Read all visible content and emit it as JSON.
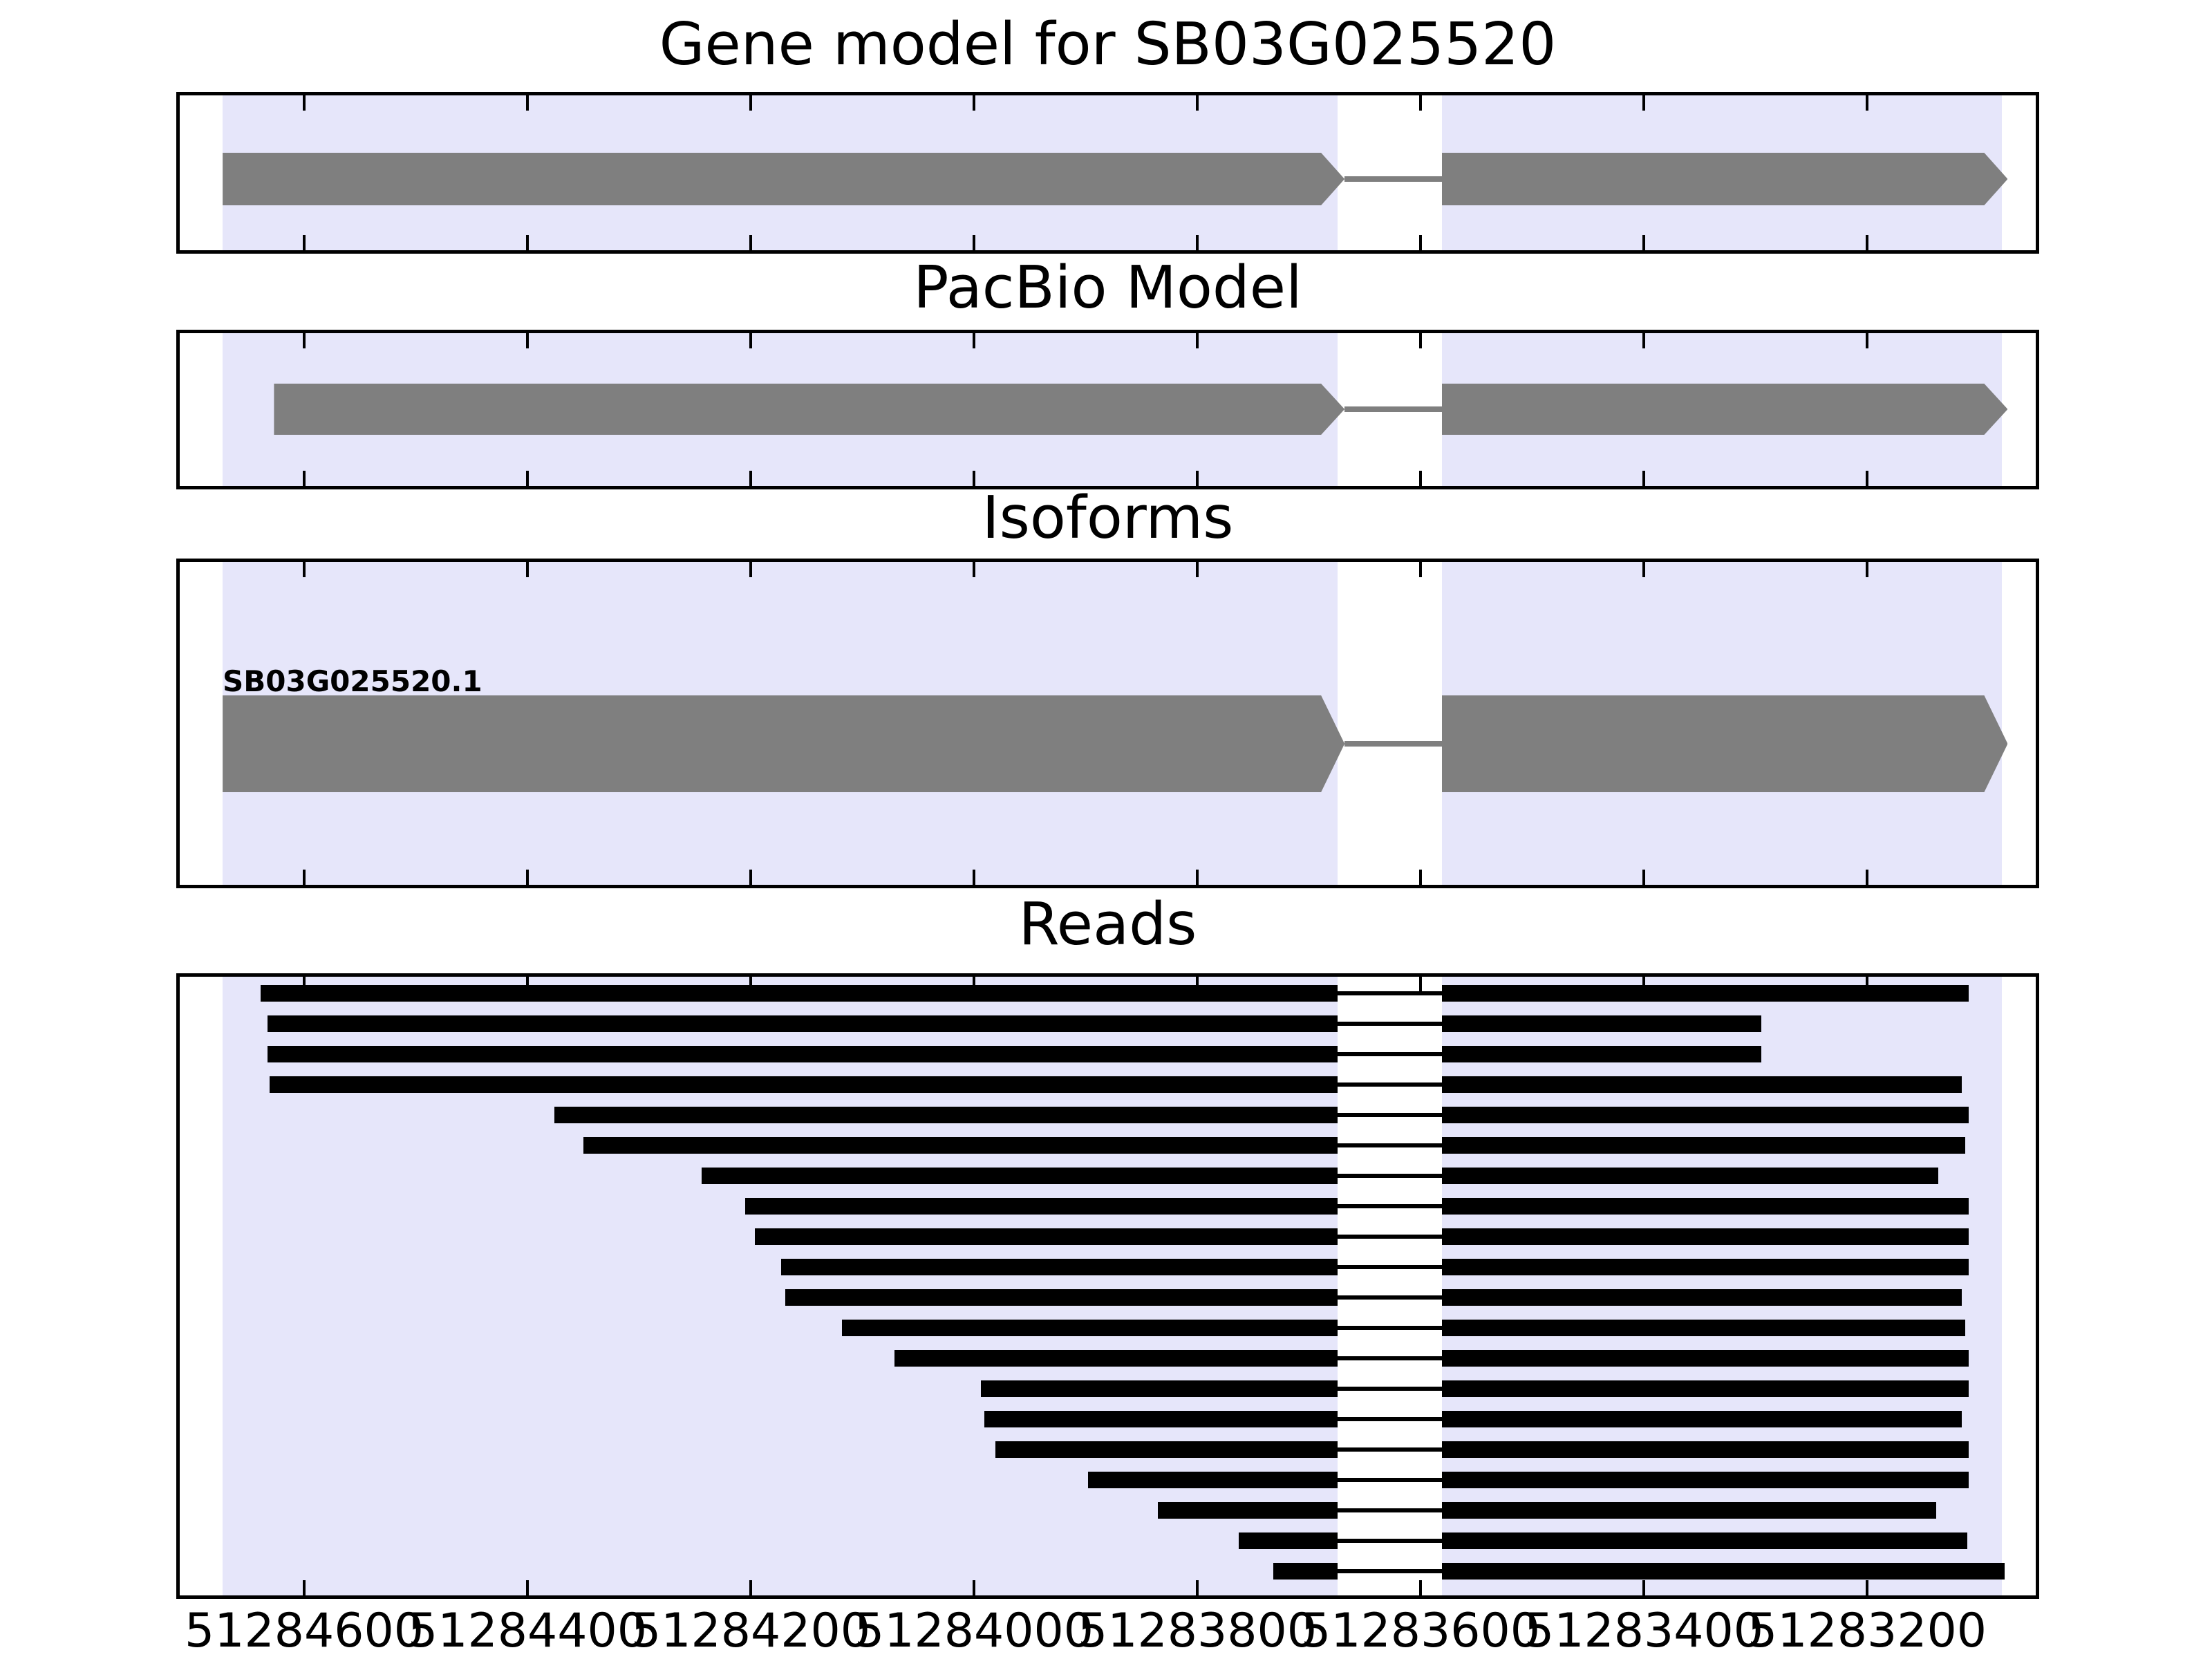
{
  "chart_data": {
    "type": "gene-tracks",
    "title": "Gene model for SB03G025520",
    "gene_id": "SB03G025520",
    "x_axis": {
      "tick_labels": [
        "51284600",
        "51284400",
        "51284200",
        "51284000",
        "51283800",
        "51283600",
        "51283400",
        "51283200"
      ],
      "tick_values": [
        51284600,
        51284400,
        51284200,
        51284000,
        51283800,
        51283600,
        51283400,
        51283200
      ],
      "direction": "decreasing",
      "grid": false
    },
    "highlight_regions": [
      {
        "start": 51284673,
        "end": 51283674
      },
      {
        "start": 51283581,
        "end": 51283079
      }
    ],
    "intron": {
      "start": 51283674,
      "end": 51283581
    },
    "tracks": [
      {
        "name": "gene_model",
        "title": "Gene model for SB03G025520",
        "features": [
          {
            "label": "",
            "strand": "right",
            "exons": [
              [
                51284673,
                51283668
              ],
              [
                51283581,
                51283074
              ]
            ]
          }
        ]
      },
      {
        "name": "pacbio_model",
        "title": "PacBio Model",
        "features": [
          {
            "label": "",
            "strand": "right",
            "exons": [
              [
                51284627,
                51283668
              ],
              [
                51283581,
                51283074
              ]
            ]
          }
        ]
      },
      {
        "name": "isoforms",
        "title": "Isoforms",
        "features": [
          {
            "label": "SB03G025520.1",
            "strand": "right",
            "exons": [
              [
                51284673,
                51283668
              ],
              [
                51283581,
                51283074
              ]
            ]
          }
        ]
      },
      {
        "name": "reads",
        "title": "Reads",
        "reads": [
          [
            51284639,
            51283109
          ],
          [
            51284633,
            51283295
          ],
          [
            51284633,
            51283295
          ],
          [
            51284631,
            51283115
          ],
          [
            51284376,
            51283109
          ],
          [
            51284350,
            51283112
          ],
          [
            51284244,
            51283136
          ],
          [
            51284205,
            51283109
          ],
          [
            51284196,
            51283109
          ],
          [
            51284173,
            51283109
          ],
          [
            51284169,
            51283115
          ],
          [
            51284118,
            51283112
          ],
          [
            51284071,
            51283109
          ],
          [
            51283994,
            51283109
          ],
          [
            51283991,
            51283115
          ],
          [
            51283981,
            51283109
          ],
          [
            51283898,
            51283109
          ],
          [
            51283835,
            51283138
          ],
          [
            51283763,
            51283110
          ],
          [
            51283732,
            51283077
          ]
        ]
      }
    ],
    "colors": {
      "highlight": "#e6e6fa",
      "model_fill": "#7f7f7f",
      "read_fill": "#000000",
      "background": "#ffffff",
      "frame": "#000000"
    }
  }
}
